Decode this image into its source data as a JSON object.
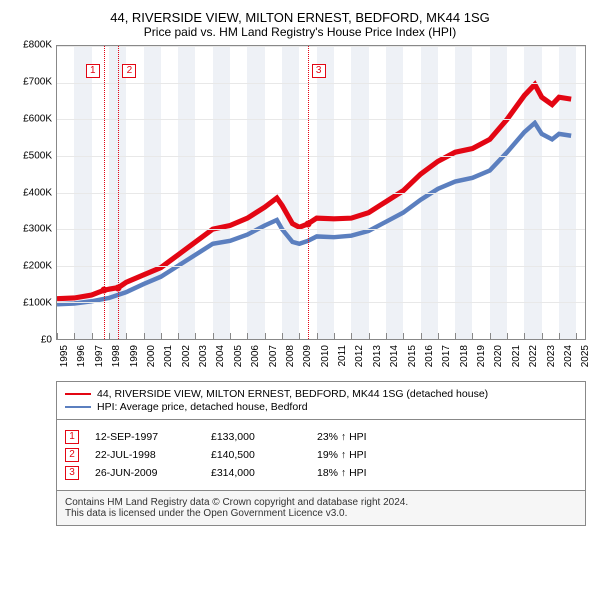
{
  "title": "44, RIVERSIDE VIEW, MILTON ERNEST, BEDFORD, MK44 1SG",
  "subtitle": "Price paid vs. HM Land Registry's House Price Index (HPI)",
  "chart": {
    "type": "line",
    "background_color": "#ffffff",
    "alt_band_color": "#eef1f6",
    "grid_color": "#e8e8e8",
    "axis_color": "#888888",
    "x_years": [
      1995,
      1996,
      1997,
      1998,
      1999,
      2000,
      2001,
      2002,
      2003,
      2004,
      2005,
      2006,
      2007,
      2008,
      2009,
      2010,
      2011,
      2012,
      2013,
      2014,
      2015,
      2016,
      2017,
      2018,
      2019,
      2020,
      2021,
      2022,
      2023,
      2024,
      2025
    ],
    "x_min": 1995,
    "x_max": 2025.5,
    "ylim": [
      0,
      800000
    ],
    "ytick_step": 100000,
    "ytick_labels": [
      "£0",
      "£100K",
      "£200K",
      "£300K",
      "£400K",
      "£500K",
      "£600K",
      "£700K",
      "£800K"
    ],
    "series": [
      {
        "name": "44, RIVERSIDE VIEW, MILTON ERNEST, BEDFORD, MK44 1SG (detached house)",
        "color": "#e30613",
        "width": 1.6,
        "points": [
          [
            1995,
            110000
          ],
          [
            1996,
            112000
          ],
          [
            1997,
            120000
          ],
          [
            1997.7,
            133000
          ],
          [
            1998,
            136000
          ],
          [
            1998.55,
            140500
          ],
          [
            1999,
            155000
          ],
          [
            2000,
            175000
          ],
          [
            2001,
            195000
          ],
          [
            2002,
            230000
          ],
          [
            2003,
            265000
          ],
          [
            2004,
            300000
          ],
          [
            2005,
            310000
          ],
          [
            2006,
            330000
          ],
          [
            2007,
            360000
          ],
          [
            2007.7,
            385000
          ],
          [
            2008,
            365000
          ],
          [
            2008.6,
            315000
          ],
          [
            2009,
            305000
          ],
          [
            2009.48,
            314000
          ],
          [
            2010,
            330000
          ],
          [
            2011,
            328000
          ],
          [
            2012,
            330000
          ],
          [
            2013,
            345000
          ],
          [
            2014,
            375000
          ],
          [
            2015,
            405000
          ],
          [
            2016,
            450000
          ],
          [
            2017,
            485000
          ],
          [
            2018,
            510000
          ],
          [
            2019,
            520000
          ],
          [
            2020,
            545000
          ],
          [
            2021,
            600000
          ],
          [
            2022,
            665000
          ],
          [
            2022.6,
            695000
          ],
          [
            2023,
            660000
          ],
          [
            2023.6,
            640000
          ],
          [
            2024,
            660000
          ],
          [
            2024.7,
            655000
          ]
        ]
      },
      {
        "name": "HPI: Average price, detached house, Bedford",
        "color": "#5b7fbf",
        "width": 1.4,
        "points": [
          [
            1995,
            95000
          ],
          [
            1996,
            97000
          ],
          [
            1997,
            103000
          ],
          [
            1998,
            112000
          ],
          [
            1999,
            128000
          ],
          [
            2000,
            150000
          ],
          [
            2001,
            170000
          ],
          [
            2002,
            200000
          ],
          [
            2003,
            230000
          ],
          [
            2004,
            260000
          ],
          [
            2005,
            268000
          ],
          [
            2006,
            285000
          ],
          [
            2007,
            310000
          ],
          [
            2007.7,
            325000
          ],
          [
            2008,
            300000
          ],
          [
            2008.6,
            265000
          ],
          [
            2009,
            260000
          ],
          [
            2009.5,
            268000
          ],
          [
            2010,
            280000
          ],
          [
            2011,
            278000
          ],
          [
            2012,
            282000
          ],
          [
            2013,
            295000
          ],
          [
            2014,
            320000
          ],
          [
            2015,
            345000
          ],
          [
            2016,
            380000
          ],
          [
            2017,
            410000
          ],
          [
            2018,
            430000
          ],
          [
            2019,
            440000
          ],
          [
            2020,
            460000
          ],
          [
            2021,
            510000
          ],
          [
            2022,
            565000
          ],
          [
            2022.6,
            590000
          ],
          [
            2023,
            560000
          ],
          [
            2023.6,
            545000
          ],
          [
            2024,
            560000
          ],
          [
            2024.7,
            555000
          ]
        ]
      }
    ],
    "markers": [
      {
        "n": "1",
        "date": "12-SEP-1997",
        "x": 1997.7,
        "price": "£133,000",
        "delta": "23% ↑ HPI",
        "color": "#e30613",
        "y_value": 133000
      },
      {
        "n": "2",
        "date": "22-JUL-1998",
        "x": 1998.55,
        "price": "£140,500",
        "delta": "19% ↑ HPI",
        "color": "#e30613",
        "y_value": 140500
      },
      {
        "n": "3",
        "date": "26-JUN-2009",
        "x": 2009.48,
        "price": "£314,000",
        "delta": "18% ↑ HPI",
        "color": "#e30613",
        "y_value": 314000
      }
    ]
  },
  "footer_line1": "Contains HM Land Registry data © Crown copyright and database right 2024.",
  "footer_line2": "This data is licensed under the Open Government Licence v3.0."
}
